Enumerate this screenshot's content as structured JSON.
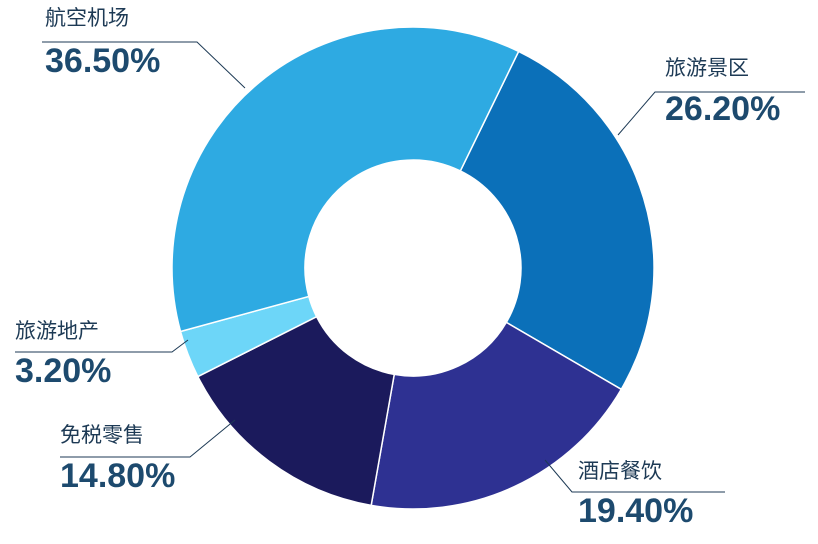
{
  "chart_data": {
    "type": "donut",
    "categories": [
      "旅游景区",
      "酒店餐饮",
      "免税零售",
      "旅游地产",
      "航空机场"
    ],
    "values": [
      26.2,
      19.4,
      14.8,
      3.2,
      36.5
    ],
    "value_labels": [
      "26.20%",
      "19.40%",
      "14.80%",
      "3.20%",
      "36.50%"
    ],
    "colors": [
      "#0b70b9",
      "#2e3192",
      "#1b1a5c",
      "#6dd6f8",
      "#2eaae2"
    ]
  }
}
